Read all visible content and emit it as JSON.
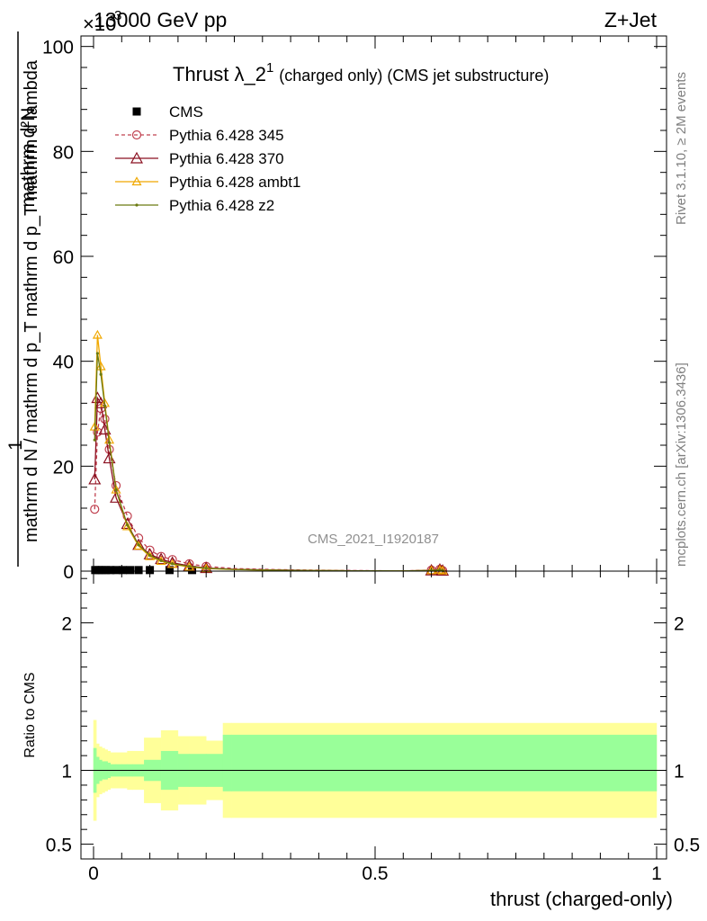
{
  "header": {
    "energy_label": "13000 GeV pp",
    "process_label": "Z+Jet",
    "exponent_label": "×10",
    "exponent_power": "-3"
  },
  "side_labels": {
    "rivet": "Rivet 3.1.10, ≥ 2M events",
    "mcplots": "mcplots.cern.ch [arXiv:1306.3436]"
  },
  "watermark": "CMS_2021_I1920187",
  "colors": {
    "data": "#000000",
    "pythia_345": "#c0404f",
    "pythia_370": "#8b1020",
    "pythia_ambt1": "#f0a800",
    "pythia_z2": "#6b7a10",
    "band_inner": "#99ff99",
    "band_outer": "#ffff99"
  },
  "chart_data": [
    {
      "type": "line",
      "title": "Thrust λ_2",
      "title_superscript": "1",
      "title_suffix": "(charged only) (CMS jet substructure)",
      "ylabel_numerator": "mathrm d²N",
      "ylabel_one": "1",
      "ylabel_denominator": "mathrm d N / mathrm d p_T mathrm d p_T mathrm d lambda",
      "xlim": [
        0,
        1
      ],
      "ylim": [
        0,
        102
      ],
      "y_ticks": [
        0,
        20,
        40,
        60,
        80,
        100
      ],
      "y_scale_note": "×10^-3",
      "legend_position": "top-left",
      "series": [
        {
          "name": "CMS",
          "marker": "square",
          "x": [
            0.003,
            0.009,
            0.015,
            0.022,
            0.03,
            0.04,
            0.052,
            0.065,
            0.08,
            0.1,
            0.135,
            0.175
          ],
          "y": [
            0.2,
            0.2,
            0.2,
            0.2,
            0.2,
            0.2,
            0.2,
            0.2,
            0.2,
            0.2,
            0.2,
            0.2
          ]
        },
        {
          "name": "Pythia 6.428 345",
          "marker": "circle",
          "dashed": true,
          "x": [
            0.002,
            0.007,
            0.013,
            0.02,
            0.028,
            0.04,
            0.06,
            0.08,
            0.1,
            0.12,
            0.14,
            0.17,
            0.2,
            0.25,
            0.3,
            0.35,
            0.4,
            0.45,
            0.5,
            0.55,
            0.6,
            0.615,
            0.62
          ],
          "y": [
            11.8,
            26.5,
            31.0,
            29.0,
            23.2,
            16.3,
            10.5,
            6.3,
            4.0,
            2.8,
            2.2,
            1.4,
            0.9,
            0.5,
            0.35,
            0.25,
            0.18,
            0.12,
            0.08,
            0.05,
            0.2,
            0.35,
            0.1
          ]
        },
        {
          "name": "Pythia 6.428 370",
          "marker": "triangle-open",
          "x": [
            0.002,
            0.007,
            0.013,
            0.02,
            0.028,
            0.04,
            0.06,
            0.08,
            0.1,
            0.12,
            0.14,
            0.17,
            0.2,
            0.25,
            0.3,
            0.35,
            0.4,
            0.45,
            0.5,
            0.55,
            0.6,
            0.615,
            0.62
          ],
          "y": [
            17.5,
            33.0,
            32.0,
            27.0,
            21.5,
            14.0,
            9.0,
            5.0,
            3.2,
            2.3,
            1.6,
            1.0,
            0.6,
            0.35,
            0.25,
            0.18,
            0.12,
            0.08,
            0.05,
            0.03,
            0.15,
            0.3,
            0.1
          ]
        },
        {
          "name": "Pythia 6.428 ambt1",
          "marker": "triangle-small",
          "x": [
            0.002,
            0.007,
            0.013,
            0.02,
            0.028,
            0.04,
            0.06,
            0.08,
            0.1,
            0.12,
            0.14,
            0.17,
            0.2,
            0.25,
            0.3,
            0.35,
            0.4,
            0.45,
            0.5,
            0.55,
            0.6,
            0.615,
            0.62
          ],
          "y": [
            27.5,
            45.0,
            39.0,
            32.0,
            25.0,
            15.5,
            8.5,
            4.8,
            2.8,
            1.9,
            1.3,
            0.8,
            0.5,
            0.3,
            0.2,
            0.14,
            0.1,
            0.07,
            0.05,
            0.03,
            0.12,
            0.25,
            0.08
          ]
        },
        {
          "name": "Pythia 6.428 z2",
          "marker": "dot",
          "x": [
            0.002,
            0.007,
            0.013,
            0.02,
            0.028,
            0.04,
            0.06,
            0.08,
            0.1,
            0.12,
            0.14,
            0.17,
            0.2,
            0.25,
            0.3,
            0.35,
            0.4,
            0.45,
            0.5,
            0.55,
            0.6,
            0.615,
            0.62
          ],
          "y": [
            25.0,
            41.5,
            37.5,
            31.5,
            24.5,
            15.5,
            8.8,
            5.0,
            3.0,
            2.0,
            1.4,
            0.9,
            0.55,
            0.32,
            0.22,
            0.15,
            0.11,
            0.07,
            0.05,
            0.03,
            0.12,
            0.25,
            0.08
          ]
        }
      ]
    },
    {
      "type": "area",
      "ylabel": "Ratio to CMS",
      "xlabel": "thrust (charged-only)",
      "xlim": [
        0,
        1
      ],
      "ylim": [
        0.4,
        2.35
      ],
      "x_ticks": [
        "0",
        "0.5",
        "1"
      ],
      "x_tick_values": [
        0,
        0.5,
        1
      ],
      "y_ticks": [
        "0.5",
        "1",
        "2"
      ],
      "y_tick_values": [
        0.5,
        1,
        2
      ],
      "reference_line": 1,
      "bins_x_edges": [
        0.0,
        0.005,
        0.01,
        0.015,
        0.02,
        0.025,
        0.03,
        0.04,
        0.05,
        0.06,
        0.07,
        0.09,
        0.12,
        0.15,
        0.17,
        0.2,
        0.23,
        0.245,
        1.0
      ],
      "bands": [
        {
          "name": "stat",
          "low": [
            0.85,
            0.91,
            0.93,
            0.94,
            0.94,
            0.95,
            0.96,
            0.96,
            0.96,
            0.96,
            0.96,
            0.93,
            0.87,
            0.89,
            0.89,
            0.89,
            0.86,
            0.86
          ],
          "high": [
            1.15,
            1.09,
            1.07,
            1.06,
            1.06,
            1.05,
            1.04,
            1.04,
            1.04,
            1.04,
            1.04,
            1.07,
            1.13,
            1.11,
            1.11,
            1.11,
            1.24,
            1.24
          ]
        },
        {
          "name": "total",
          "low": [
            0.66,
            0.82,
            0.84,
            0.85,
            0.86,
            0.87,
            0.88,
            0.88,
            0.88,
            0.87,
            0.87,
            0.78,
            0.73,
            0.77,
            0.77,
            0.8,
            0.68,
            0.68
          ],
          "high": [
            1.34,
            1.18,
            1.16,
            1.15,
            1.14,
            1.13,
            1.12,
            1.12,
            1.12,
            1.13,
            1.13,
            1.22,
            1.27,
            1.23,
            1.23,
            1.2,
            1.32,
            1.32
          ]
        }
      ]
    }
  ]
}
